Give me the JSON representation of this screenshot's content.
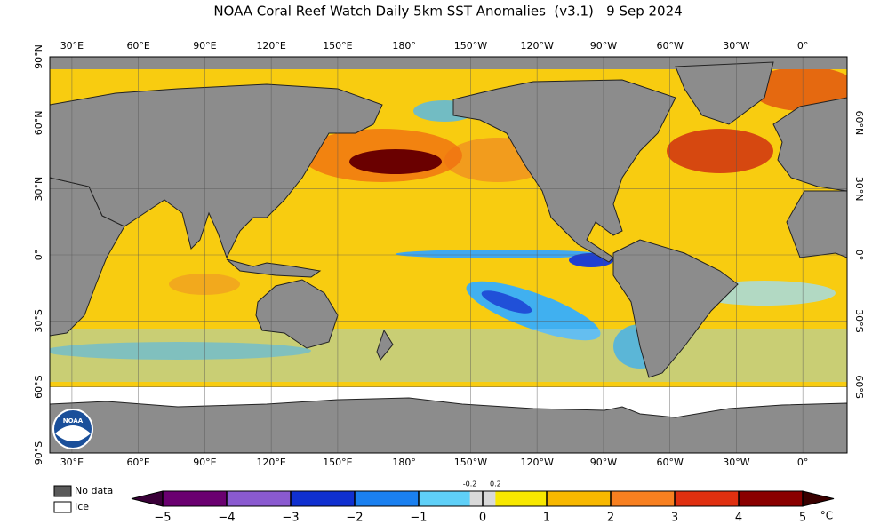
{
  "header": {
    "title": "NOAA Coral Reef Watch Daily 5km SST Anomalies  (v3.1)   9 Sep 2024"
  },
  "map": {
    "lon_range": [
      20,
      380
    ],
    "lat_range": [
      90,
      -90
    ],
    "lon_ticks": [
      {
        "value": 30,
        "label": "30°E"
      },
      {
        "value": 60,
        "label": "60°E"
      },
      {
        "value": 90,
        "label": "90°E"
      },
      {
        "value": 120,
        "label": "120°E"
      },
      {
        "value": 150,
        "label": "150°E"
      },
      {
        "value": 180,
        "label": "180°"
      },
      {
        "value": 210,
        "label": "150°W"
      },
      {
        "value": 240,
        "label": "120°W"
      },
      {
        "value": 270,
        "label": "90°W"
      },
      {
        "value": 300,
        "label": "60°W"
      },
      {
        "value": 330,
        "label": "30°W"
      },
      {
        "value": 360,
        "label": "0°"
      }
    ],
    "lat_ticks": [
      {
        "value": 90,
        "label": "90°N"
      },
      {
        "value": 60,
        "label": "60°N"
      },
      {
        "value": 30,
        "label": "30°N"
      },
      {
        "value": 0,
        "label": "0°"
      },
      {
        "value": -30,
        "label": "30°S"
      },
      {
        "value": -60,
        "label": "60°S"
      },
      {
        "value": -90,
        "label": "90°S"
      }
    ],
    "logo_text": "NOAA"
  },
  "legend": {
    "items": [
      {
        "label": "No data",
        "color": "#5a5a5a"
      },
      {
        "label": "Ice",
        "color": "#ffffff"
      }
    ]
  },
  "colorbar": {
    "range": [
      -5,
      5
    ],
    "ticks": [
      {
        "value": -5,
        "label": "−5"
      },
      {
        "value": -4,
        "label": "−4"
      },
      {
        "value": -3,
        "label": "−3"
      },
      {
        "value": -2,
        "label": "−2"
      },
      {
        "value": -1,
        "label": "−1"
      },
      0,
      1,
      2,
      3,
      4,
      5
    ],
    "neutral_ticks": [
      -0.2,
      0.2
    ],
    "neutral_color": "#d9d9d9",
    "colors": [
      "#6a0070",
      "#8a5ad0",
      "#1030d0",
      "#1a80f0",
      "#5fd0f8",
      "#f8e800",
      "#f8b800",
      "#f88020",
      "#e03010",
      "#8a0000"
    ],
    "end_colors": [
      "#3a0038",
      "#3a0000"
    ],
    "unit": "°C"
  }
}
